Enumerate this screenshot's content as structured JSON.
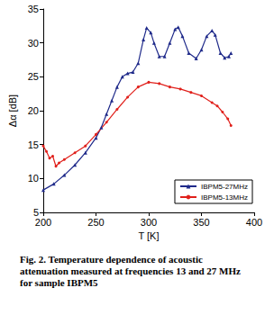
{
  "chart_data": {
    "type": "line",
    "x_label": "T [K]",
    "y_label": "Δα [dB]",
    "annotations": [
      "Fig. 2. Temperature dependence of acoustic attenuation measured at frequencies 13 and 27 MHz for sample IBPM5"
    ],
    "xlim": [
      200,
      400
    ],
    "xticks": [
      200,
      250,
      300,
      350,
      400
    ],
    "ylim": [
      5,
      35
    ],
    "yticks": [
      5,
      10,
      15,
      20,
      25,
      30,
      35
    ],
    "grid": false,
    "legend": "lower right",
    "series": [
      {
        "name": "IBPM5-27MHz",
        "color": "#1f2a8a",
        "marker": "triangle",
        "x": [
          200,
          210,
          220,
          230,
          240,
          250,
          255,
          260,
          265,
          270,
          275,
          280,
          285,
          290,
          295,
          298,
          302,
          305,
          310,
          315,
          320,
          325,
          328,
          332,
          338,
          345,
          350,
          355,
          360,
          363,
          368,
          372,
          376,
          378
        ],
        "values": [
          8.3,
          9.2,
          10.5,
          12,
          13.8,
          16,
          17.5,
          19.5,
          21.5,
          23.5,
          25,
          25.5,
          25.7,
          27,
          30.5,
          32.2,
          31.5,
          30,
          28,
          28,
          30,
          32,
          32.3,
          31,
          28.5,
          27.7,
          29,
          31,
          31.8,
          31.2,
          28.5,
          27.8,
          28,
          28.5
        ]
      },
      {
        "name": "IBPM5-13MHz",
        "color": "#e0201b",
        "marker": "circle",
        "x": [
          200,
          203,
          206,
          209,
          212,
          215,
          220,
          230,
          240,
          250,
          260,
          270,
          280,
          290,
          300,
          310,
          320,
          330,
          340,
          350,
          360,
          365,
          370,
          375,
          378
        ],
        "values": [
          14.8,
          14,
          13,
          13.3,
          11.8,
          12.3,
          12.8,
          13.8,
          14.8,
          16.5,
          18.3,
          20.2,
          22,
          23.5,
          24.2,
          24,
          23.5,
          23.2,
          22.7,
          22.2,
          21.2,
          20.7,
          19.8,
          18.8,
          17.8
        ]
      }
    ]
  }
}
